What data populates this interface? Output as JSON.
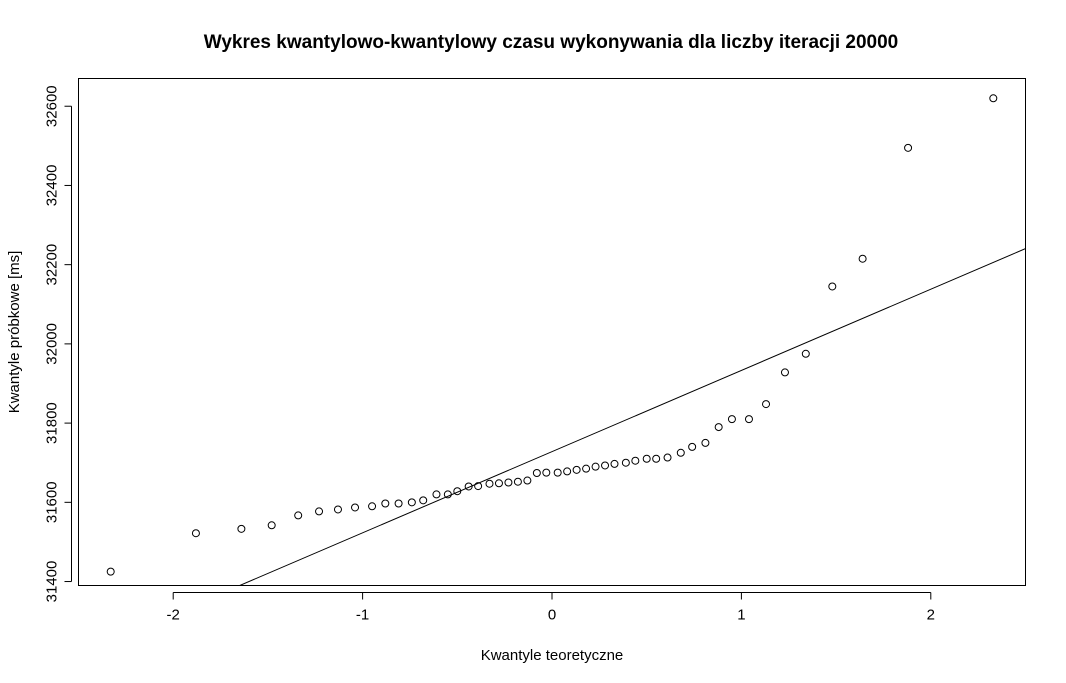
{
  "chart_data": {
    "type": "scatter",
    "title": "Wykres kwantylowo-kwantylowy czasu wykonywania dla liczby iteracji 20000",
    "xlabel": "Kwantyle teoretyczne",
    "ylabel": "Kwantyle próbkowe [ms]",
    "xlim": [
      -2.5,
      2.5
    ],
    "ylim": [
      31390,
      32670
    ],
    "xticks": [
      -2,
      -1,
      0,
      1,
      2
    ],
    "yticks": [
      31400,
      31600,
      31800,
      32000,
      32200,
      32400,
      32600
    ],
    "grid": false,
    "points": {
      "x": [
        -2.33,
        -1.88,
        -1.64,
        -1.48,
        -1.34,
        -1.23,
        -1.13,
        -1.04,
        -0.95,
        -0.88,
        -0.81,
        -0.74,
        -0.68,
        -0.61,
        -0.55,
        -0.5,
        -0.44,
        -0.39,
        -0.33,
        -0.28,
        -0.23,
        -0.18,
        -0.13,
        -0.08,
        -0.03,
        0.03,
        0.08,
        0.13,
        0.18,
        0.23,
        0.28,
        0.33,
        0.39,
        0.44,
        0.5,
        0.55,
        0.61,
        0.68,
        0.74,
        0.81,
        0.88,
        0.95,
        1.04,
        1.13,
        1.23,
        1.34,
        1.48,
        1.64,
        1.88,
        2.33
      ],
      "y": [
        31425,
        31522,
        31533,
        31542,
        31567,
        31577,
        31582,
        31587,
        31590,
        31597,
        31597,
        31600,
        31605,
        31620,
        31620,
        31628,
        31640,
        31641,
        31647,
        31648,
        31650,
        31652,
        31655,
        31674,
        31675,
        31675,
        31678,
        31682,
        31685,
        31690,
        31693,
        31697,
        31700,
        31705,
        31710,
        31710,
        31713,
        31725,
        31740,
        31750,
        31790,
        31810,
        31810,
        31848,
        31928,
        31975,
        32145,
        32215,
        32495,
        32620
      ]
    },
    "reference_line": {
      "intercept": 31728,
      "slope": 205
    }
  }
}
